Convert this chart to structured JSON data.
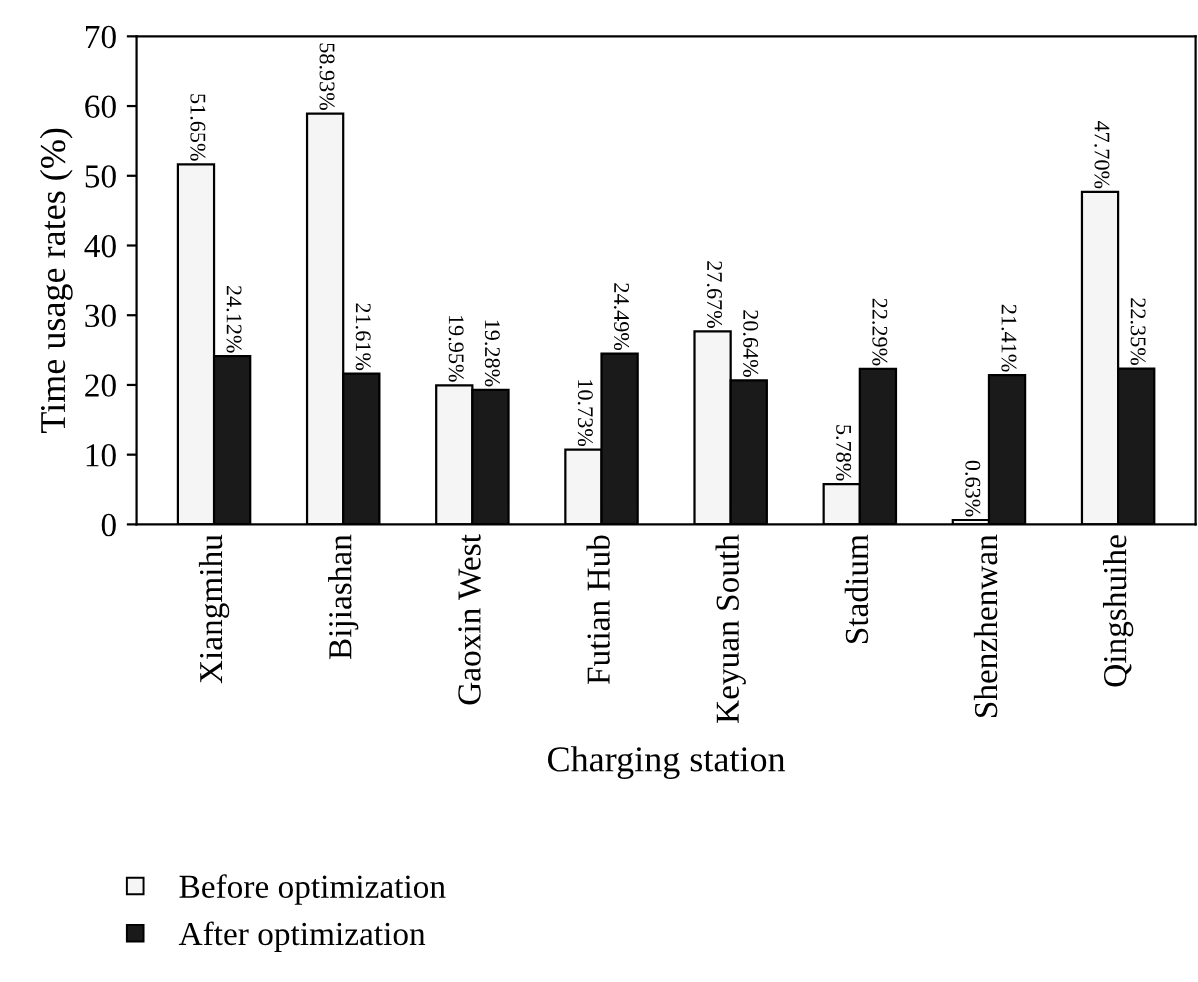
{
  "chart_data": {
    "type": "bar",
    "xlabel": "Charging station",
    "ylabel": "Time usage rates (%)",
    "categories": [
      "Xiangmihu",
      "Bijiashan",
      "Gaoxin West",
      "Futian Hub",
      "Keyuan South",
      "Stadium",
      "Shenzhenwan",
      "Qingshuihe"
    ],
    "series": [
      {
        "name": "Before optimization",
        "color": "#f5f5f5",
        "values": [
          51.65,
          58.93,
          19.95,
          10.73,
          27.67,
          5.78,
          0.63,
          47.7
        ],
        "value_labels": [
          "51.65%",
          "58.93%",
          "19.95%",
          "10.73%",
          "27.67%",
          "5.78%",
          "0.63%",
          "47.70%"
        ]
      },
      {
        "name": "After optimization",
        "color": "#1a1a1a",
        "values": [
          24.12,
          21.61,
          19.28,
          24.49,
          20.64,
          22.29,
          21.41,
          22.35
        ],
        "value_labels": [
          "24.12%",
          "21.61%",
          "19.28%",
          "24.49%",
          "20.64%",
          "22.29%",
          "21.41%",
          "22.35%"
        ]
      }
    ],
    "ylim": [
      0,
      70
    ],
    "yticks": [
      0,
      10,
      20,
      30,
      40,
      50,
      60,
      70
    ],
    "grid": false,
    "legend": "bottom left"
  }
}
